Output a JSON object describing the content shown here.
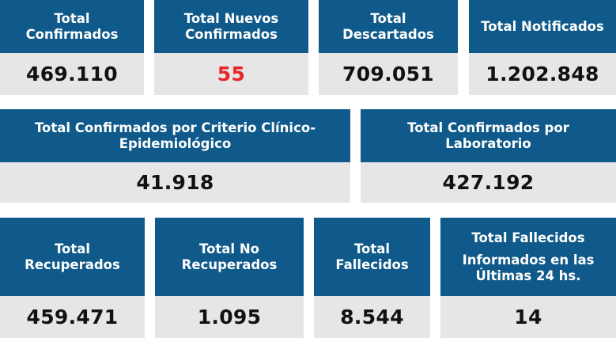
{
  "row1": {
    "total_confirmados": {
      "title": [
        "Total",
        "Confirmados"
      ],
      "value": "469.110"
    },
    "total_nuevos": {
      "title": [
        "Total Nuevos",
        "Confirmados"
      ],
      "value": "55",
      "value_color": "#e8262a"
    },
    "total_descartados": {
      "title": [
        "Total",
        "Descartados"
      ],
      "value": "709.051"
    },
    "total_notificados": {
      "title": [
        "Total Notificados"
      ],
      "value": "1.202.848"
    }
  },
  "row2": {
    "criterio_clinico": {
      "title": [
        "Total Confirmados por Criterio Clínico-",
        "Epidemiológico"
      ],
      "value": "41.918"
    },
    "laboratorio": {
      "title": [
        "Total Confirmados por",
        "Laboratorio"
      ],
      "value": "427.192"
    }
  },
  "row3": {
    "recuperados": {
      "title": [
        "Total",
        "Recuperados"
      ],
      "value": "459.471"
    },
    "no_recuperados": {
      "title": [
        "Total No",
        "Recuperados"
      ],
      "value": "1.095"
    },
    "fallecidos": {
      "title": [
        "Total",
        "Fallecidos"
      ],
      "value": "8.544"
    },
    "fallecidos_24h": {
      "title": [
        "Total Fallecidos",
        "Informados en las",
        "Últimas 24 hs."
      ],
      "value": "14"
    }
  },
  "colors": {
    "header_bg": "#0f5a8a",
    "value_bg": "#e6e6e6",
    "highlight": "#e8262a"
  }
}
